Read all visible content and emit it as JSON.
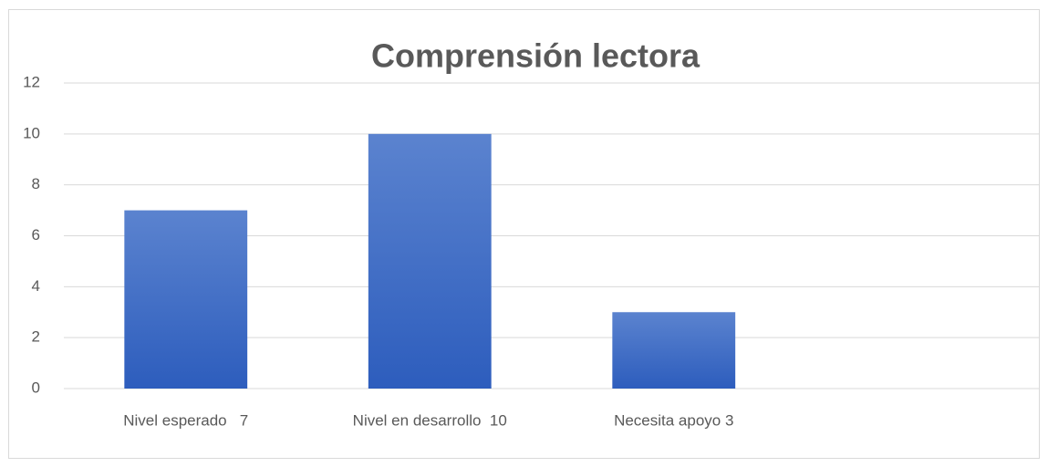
{
  "chart_data": {
    "type": "bar",
    "title": "Comprensión lectora",
    "categories": [
      "Nivel esperado   7",
      "Nivel en desarrollo  10",
      "Necesita apoyo 3",
      null
    ],
    "values": [
      7,
      10,
      3,
      null
    ],
    "color": "#4472c4",
    "ylim": [
      0,
      12
    ],
    "yticks": [
      0,
      2,
      4,
      6,
      8,
      10,
      12
    ],
    "grid": true
  }
}
